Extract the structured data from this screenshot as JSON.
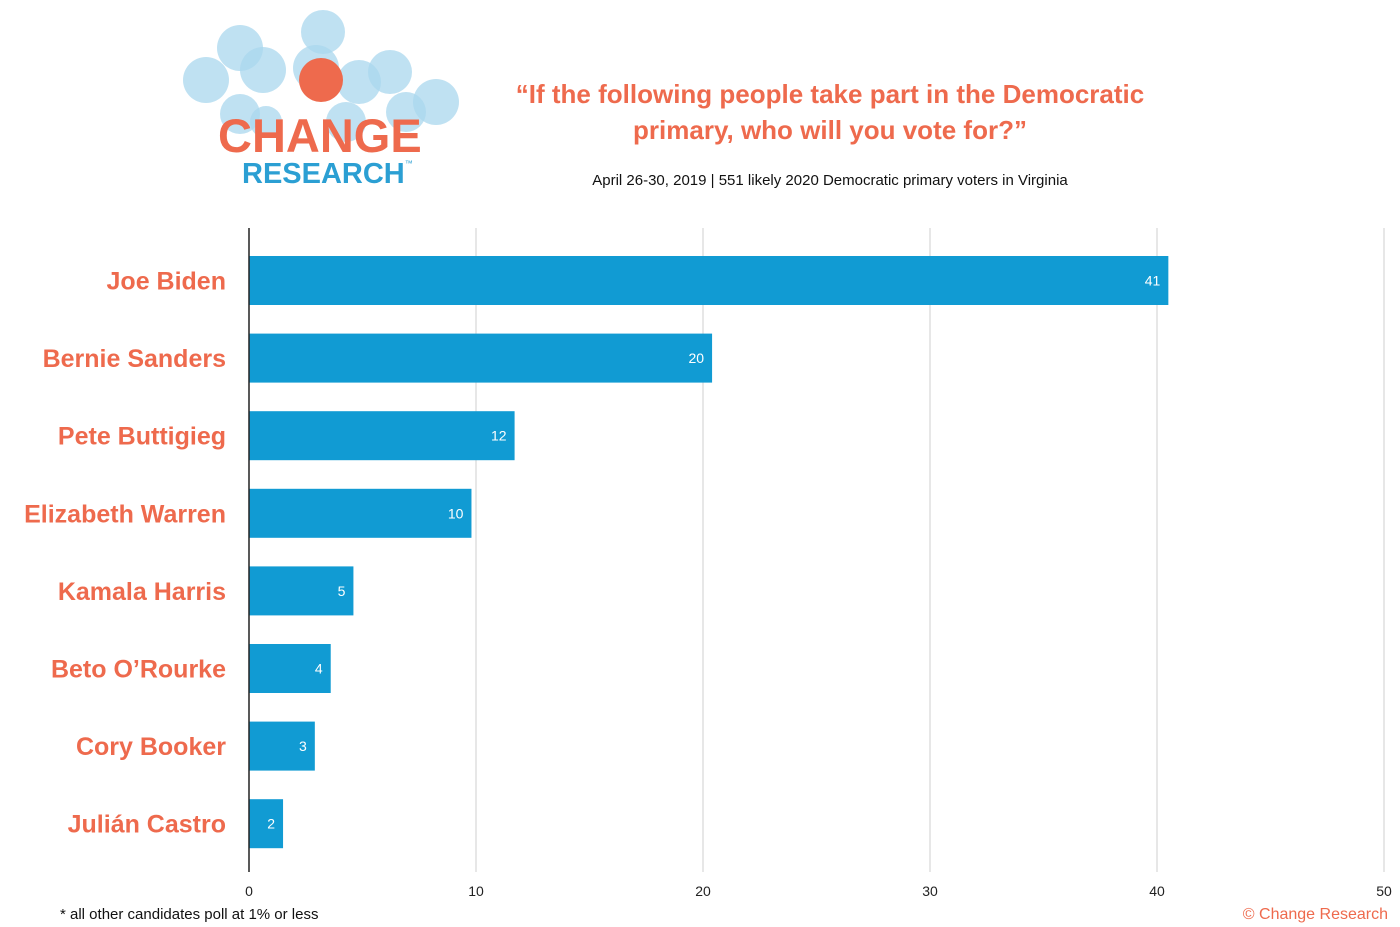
{
  "logo": {
    "line1": "CHANGE",
    "line2": "RESEARCH",
    "trademark": "™",
    "circle_color": "#a9d7ee",
    "dot_color": "#ee6a4d"
  },
  "header": {
    "title_line1": "“If the following people take part in the Democratic",
    "title_line2": "primary, who will you vote for?”",
    "subtitle": "April 26-30, 2019  | 551 likely 2020 Democratic primary voters in Virginia"
  },
  "chart_data": {
    "type": "bar",
    "orientation": "horizontal",
    "categories": [
      "Joe Biden",
      "Bernie Sanders",
      "Pete Buttigieg",
      "Elizabeth Warren",
      "Kamala Harris",
      "Beto O’Rourke",
      "Cory Booker",
      "Julián Castro"
    ],
    "values": [
      40.5,
      20.4,
      11.7,
      9.8,
      4.6,
      3.6,
      2.9,
      1.5
    ],
    "data_labels": [
      "41",
      "20",
      "12",
      "10",
      "5",
      "4",
      "3",
      "2"
    ],
    "xlim": [
      0,
      50
    ],
    "xticks": [
      "0",
      "10",
      "20",
      "30",
      "40",
      "50"
    ],
    "grid": true,
    "bar_color": "#119bd3",
    "label_color": "#ee6a4d"
  },
  "footer": {
    "note": "* all other candidates poll at 1% or less",
    "credit": "© Change Research"
  }
}
